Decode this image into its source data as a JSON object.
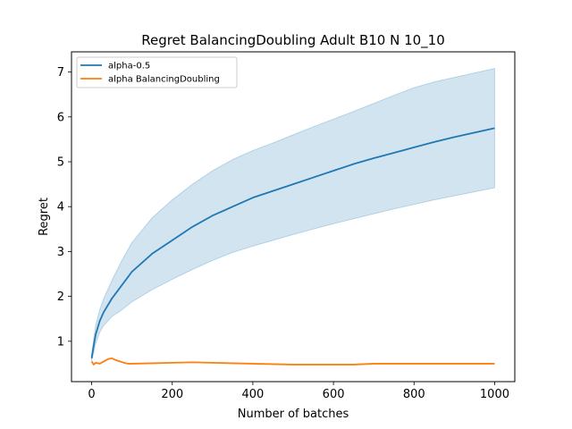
{
  "chart_data": {
    "type": "line",
    "title": "Regret BalancingDoubling Adult B10 N 10_10",
    "xlabel": "Number of batches",
    "ylabel": "Regret",
    "xlim": [
      -50,
      1050
    ],
    "ylim": [
      0.1,
      7.45
    ],
    "xticks": [
      0,
      200,
      400,
      600,
      800,
      1000
    ],
    "yticks": [
      1,
      2,
      3,
      4,
      5,
      6,
      7
    ],
    "grid": false,
    "legend_position": "top-left",
    "series": [
      {
        "name": "alpha-0.5",
        "color": "#1f77b4",
        "band_color": "#1f77b4",
        "x": [
          0,
          5,
          10,
          20,
          30,
          50,
          75,
          100,
          150,
          200,
          250,
          300,
          350,
          400,
          450,
          500,
          550,
          600,
          650,
          700,
          750,
          800,
          850,
          900,
          950,
          1000
        ],
        "y": [
          0.62,
          0.9,
          1.15,
          1.45,
          1.65,
          1.95,
          2.25,
          2.55,
          2.95,
          3.25,
          3.55,
          3.8,
          4.0,
          4.2,
          4.35,
          4.5,
          4.65,
          4.8,
          4.95,
          5.08,
          5.2,
          5.32,
          5.44,
          5.55,
          5.65,
          5.75
        ],
        "lower": [
          0.55,
          0.75,
          0.95,
          1.2,
          1.35,
          1.55,
          1.7,
          1.88,
          2.15,
          2.38,
          2.6,
          2.8,
          2.98,
          3.12,
          3.25,
          3.38,
          3.5,
          3.62,
          3.73,
          3.84,
          3.95,
          4.05,
          4.15,
          4.24,
          4.33,
          4.42
        ],
        "upper": [
          0.7,
          1.05,
          1.35,
          1.7,
          1.95,
          2.35,
          2.8,
          3.2,
          3.75,
          4.15,
          4.5,
          4.8,
          5.05,
          5.25,
          5.42,
          5.6,
          5.78,
          5.95,
          6.12,
          6.3,
          6.48,
          6.65,
          6.78,
          6.88,
          6.98,
          7.08
        ]
      },
      {
        "name": "alpha BalancingDoubling",
        "color": "#ff7f0e",
        "x": [
          0,
          5,
          10,
          20,
          30,
          40,
          50,
          60,
          70,
          80,
          90,
          100,
          150,
          200,
          250,
          300,
          350,
          400,
          450,
          500,
          550,
          600,
          650,
          700,
          750,
          800,
          850,
          900,
          950,
          1000
        ],
        "y": [
          0.55,
          0.48,
          0.52,
          0.5,
          0.55,
          0.6,
          0.62,
          0.58,
          0.55,
          0.52,
          0.5,
          0.5,
          0.51,
          0.52,
          0.53,
          0.52,
          0.51,
          0.5,
          0.49,
          0.48,
          0.48,
          0.48,
          0.48,
          0.5,
          0.5,
          0.5,
          0.5,
          0.5,
          0.5,
          0.5
        ]
      }
    ]
  }
}
